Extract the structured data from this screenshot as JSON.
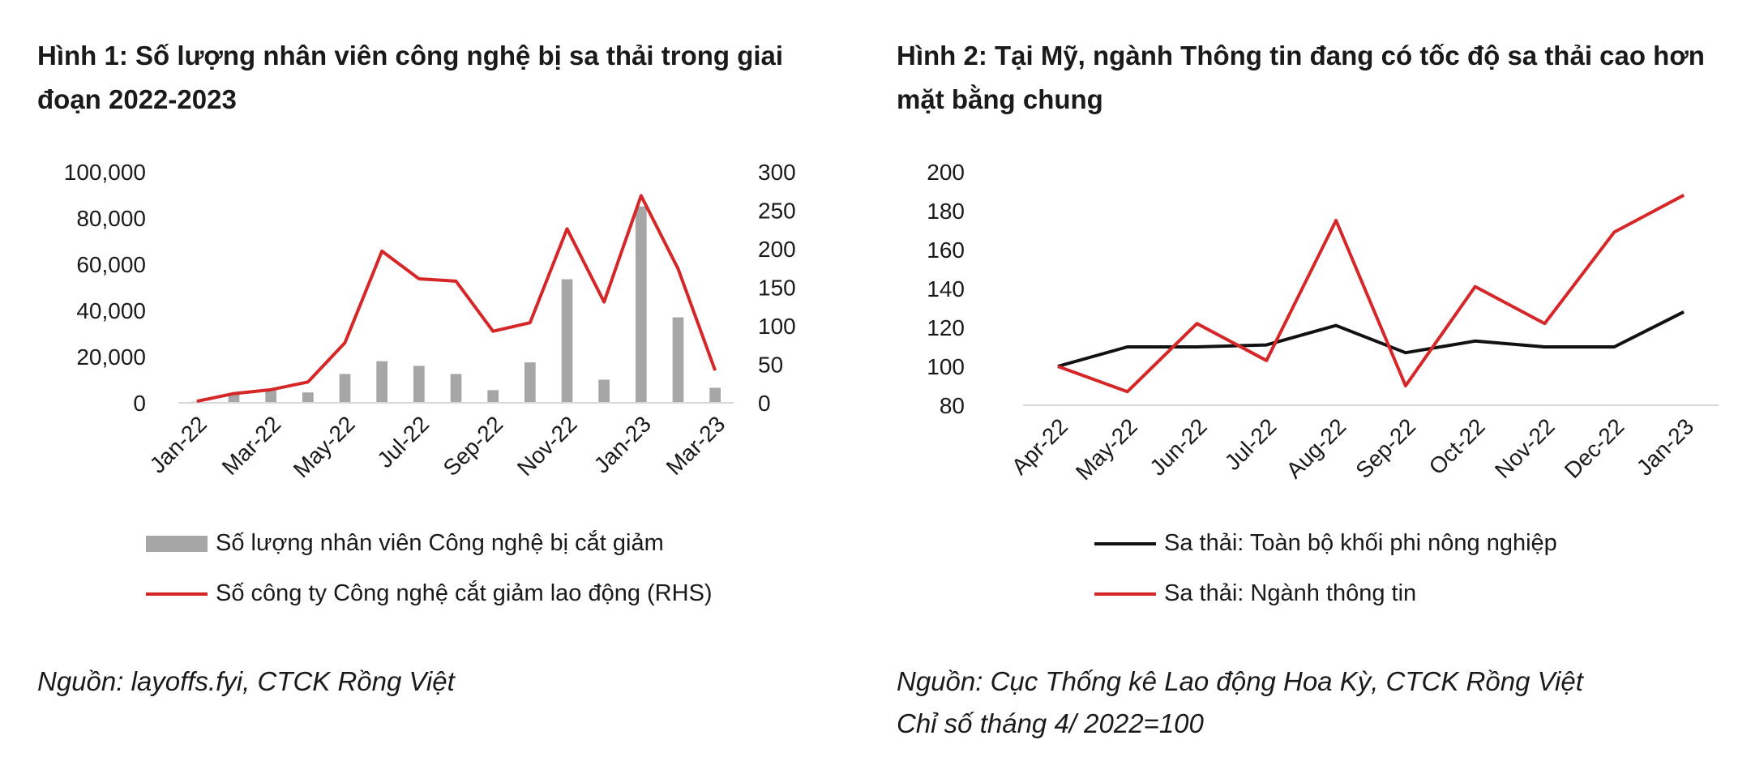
{
  "colors": {
    "bar": "#a6a6a6",
    "red": "#d62728",
    "black": "#111111",
    "axis": "#d9d9d9"
  },
  "chart_data": [
    {
      "type": "bar",
      "title": "Hình 1: Số lượng nhân viên công nghệ bị sa thải trong giai đoạn 2022-2023",
      "categories": [
        "Jan-22",
        "Feb-22",
        "Mar-22",
        "Apr-22",
        "May-22",
        "Jun-22",
        "Jul-22",
        "Aug-22",
        "Sep-22",
        "Oct-22",
        "Nov-22",
        "Dec-22",
        "Jan-23",
        "Feb-23",
        "Mar-23"
      ],
      "x_tick_labels": [
        "Jan-22",
        "Mar-22",
        "May-22",
        "Jul-22",
        "Sep-22",
        "Nov-22",
        "Jan-23",
        "Mar-23"
      ],
      "ylim": [
        0,
        100000
      ],
      "y_ticks": [
        "0",
        "20,000",
        "40,000",
        "60,000",
        "80,000",
        "100,000"
      ],
      "y2lim": [
        0,
        300
      ],
      "y2_ticks": [
        "0",
        "50",
        "100",
        "150",
        "200",
        "250",
        "300"
      ],
      "legend_position": "bottom",
      "series": [
        {
          "name": "Số lượng nhân viên Công nghệ bị cắt giảm",
          "type": "bar",
          "axis": "left",
          "values": [
            500,
            4000,
            5500,
            4500,
            12500,
            18000,
            16000,
            12500,
            5500,
            17500,
            53500,
            10000,
            85000,
            37000,
            6500
          ]
        },
        {
          "name": "Số công ty Công nghệ cắt giảm lao động (RHS)",
          "type": "line",
          "axis": "right",
          "values": [
            2,
            12,
            17,
            27,
            78,
            197,
            161,
            158,
            93,
            104,
            226,
            131,
            269,
            174,
            42
          ]
        }
      ],
      "source": "Nguồn: layoffs.fyi, CTCK Rồng Việt"
    },
    {
      "type": "line",
      "title": "Hình 2: Tại Mỹ, ngành Thông tin đang có tốc độ sa thải cao hơn mặt bằng chung",
      "categories": [
        "Apr-22",
        "May-22",
        "Jun-22",
        "Jul-22",
        "Aug-22",
        "Sep-22",
        "Oct-22",
        "Nov-22",
        "Dec-22",
        "Jan-23"
      ],
      "ylim": [
        80,
        200
      ],
      "y_ticks": [
        "80",
        "100",
        "120",
        "140",
        "160",
        "180",
        "200"
      ],
      "legend_position": "bottom",
      "series": [
        {
          "name": "Sa thải: Toàn bộ khối phi nông nghiệp",
          "values": [
            100,
            110,
            110,
            111,
            121,
            107,
            113,
            110,
            110,
            128
          ]
        },
        {
          "name": "Sa thải: Ngành thông tin",
          "values": [
            100,
            87,
            122,
            103,
            175,
            90,
            141,
            122,
            169,
            188
          ]
        }
      ],
      "source": "Nguồn:  Cục Thống kê Lao động Hoa Kỳ, CTCK Rồng Việt",
      "note": "Chỉ số tháng 4/ 2022=100"
    }
  ]
}
